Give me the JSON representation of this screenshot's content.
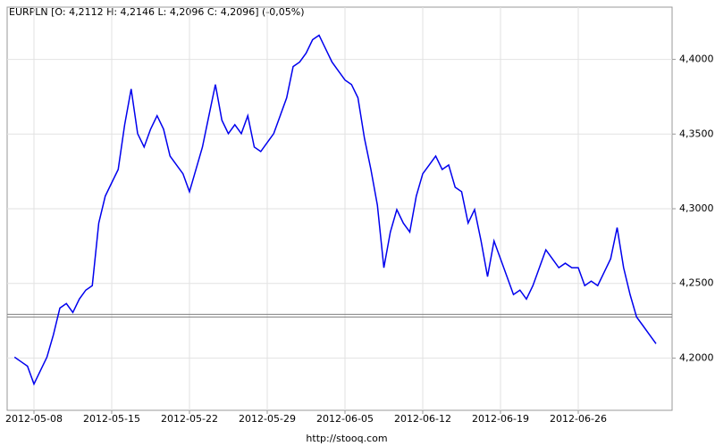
{
  "chart_data": {
    "type": "line",
    "title": "EURPLN [O: 4,2112  H: 4,2146  L: 4,2096  C: 4,2096] (-0,05%)",
    "footer": "http://stooq.com",
    "categories": [
      null,
      null,
      null,
      "2012-05-08",
      null,
      null,
      null,
      null,
      null,
      null,
      null,
      null,
      null,
      null,
      null,
      "2012-05-15",
      null,
      null,
      null,
      null,
      null,
      null,
      null,
      null,
      null,
      null,
      null,
      "2012-05-22",
      null,
      null,
      null,
      null,
      null,
      null,
      null,
      null,
      null,
      null,
      null,
      "2012-05-29",
      null,
      null,
      null,
      null,
      null,
      null,
      null,
      null,
      null,
      null,
      null,
      "2012-06-05",
      null,
      null,
      null,
      null,
      null,
      null,
      null,
      null,
      null,
      null,
      null,
      "2012-06-12",
      null,
      null,
      null,
      null,
      null,
      null,
      null,
      null,
      null,
      null,
      null,
      "2012-06-19",
      null,
      null,
      null,
      null,
      null,
      null,
      null,
      null,
      null,
      null,
      null,
      "2012-06-26",
      null,
      null,
      null,
      null,
      null,
      null,
      null,
      null,
      null,
      null,
      null,
      null
    ],
    "values": [
      4.2006,
      4.1976,
      4.1946,
      4.1826,
      4.1916,
      4.2006,
      4.2156,
      4.2335,
      4.2365,
      4.2305,
      4.2395,
      4.2455,
      4.2485,
      4.2904,
      4.3084,
      4.3174,
      4.3263,
      4.3563,
      4.3802,
      4.3503,
      4.3413,
      4.3533,
      4.3623,
      4.3533,
      4.3353,
      4.3293,
      4.3234,
      4.3114,
      4.3263,
      4.3413,
      4.3623,
      4.3832,
      4.3593,
      4.3503,
      4.3563,
      4.3503,
      4.3623,
      4.3413,
      4.3383,
      4.3443,
      4.3503,
      4.3623,
      4.3743,
      4.3952,
      4.3982,
      4.4042,
      4.4132,
      4.4162,
      4.4072,
      4.3982,
      4.3922,
      4.3862,
      4.3832,
      4.3743,
      4.3473,
      4.3263,
      4.3024,
      4.2605,
      4.2844,
      4.2994,
      4.2904,
      4.2844,
      4.3084,
      4.3234,
      4.3293,
      4.3353,
      4.3263,
      4.3293,
      4.3144,
      4.3114,
      4.2904,
      4.2994,
      4.2784,
      4.2545,
      4.2784,
      4.2665,
      4.2545,
      4.2425,
      4.2455,
      4.2395,
      4.2485,
      4.2605,
      4.2725,
      4.2665,
      4.2605,
      4.2635,
      4.2605,
      4.2605,
      4.2485,
      4.2515,
      4.2485,
      4.2575,
      4.2665,
      4.2874,
      4.2605,
      4.2425,
      4.2275,
      4.2216,
      4.2156,
      4.2096
    ],
    "color": "#0000ee",
    "reference_lines": [
      4.2293,
      4.2275
    ],
    "reference_color": "#808080",
    "ylim": [
      4.165,
      4.435
    ],
    "yticks": [
      {
        "value": 4.2,
        "label": "4,2000"
      },
      {
        "value": 4.25,
        "label": "4,2500"
      },
      {
        "value": 4.3,
        "label": "4,3000"
      },
      {
        "value": 4.35,
        "label": "4,3500"
      },
      {
        "value": 4.4,
        "label": "4,4000"
      }
    ],
    "grid": true
  }
}
